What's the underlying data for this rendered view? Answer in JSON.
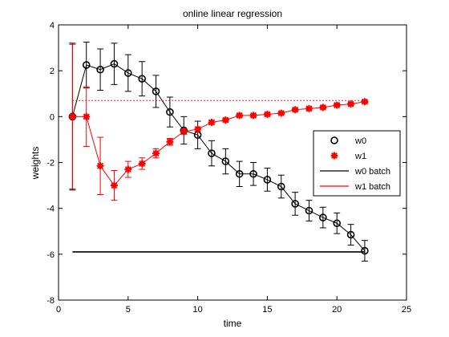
{
  "chart_data": {
    "type": "line",
    "title": "online linear regression",
    "xlabel": "time",
    "ylabel": "weights",
    "xlim": [
      0,
      25
    ],
    "ylim": [
      -8,
      4
    ],
    "xticks": [
      0,
      5,
      10,
      15,
      20,
      25
    ],
    "yticks": [
      -8,
      -6,
      -4,
      -2,
      0,
      2,
      4
    ],
    "xtick_labels": [
      "0",
      "5",
      "10",
      "15",
      "20",
      "25"
    ],
    "ytick_labels": [
      "-8",
      "-6",
      "-4",
      "-2",
      "0",
      "2",
      "4"
    ],
    "grid": false,
    "legend_position": "right",
    "series": [
      {
        "name": "w0",
        "marker": "circle",
        "color": "#000000",
        "x": [
          1,
          2,
          3,
          4,
          5,
          6,
          7,
          8,
          9,
          10,
          11,
          12,
          13,
          14,
          15,
          16,
          17,
          18,
          19,
          20,
          21,
          22
        ],
        "y": [
          0.0,
          2.25,
          2.05,
          2.3,
          1.9,
          1.65,
          1.1,
          0.2,
          -0.6,
          -0.8,
          -1.6,
          -1.95,
          -2.5,
          -2.5,
          -2.75,
          -3.05,
          -3.8,
          -4.1,
          -4.4,
          -4.65,
          -5.15,
          -5.85
        ],
        "err": [
          3.2,
          1.0,
          0.9,
          0.9,
          0.8,
          0.75,
          0.7,
          0.65,
          0.6,
          0.6,
          0.55,
          0.55,
          0.55,
          0.5,
          0.5,
          0.5,
          0.5,
          0.45,
          0.45,
          0.45,
          0.45,
          0.45
        ]
      },
      {
        "name": "w1",
        "marker": "star",
        "color": "#ff0000",
        "x": [
          1,
          2,
          3,
          4,
          5,
          6,
          7,
          8,
          9,
          10,
          11,
          12,
          13,
          14,
          15,
          16,
          17,
          18,
          19,
          20,
          21,
          22
        ],
        "y": [
          0.0,
          0.0,
          -2.15,
          -3.0,
          -2.3,
          -2.05,
          -1.6,
          -1.1,
          -0.65,
          -0.55,
          -0.25,
          -0.15,
          0.05,
          0.05,
          0.1,
          0.15,
          0.3,
          0.35,
          0.4,
          0.5,
          0.55,
          0.65
        ],
        "err": [
          3.15,
          1.3,
          1.25,
          0.65,
          0.35,
          0.25,
          0.2,
          0.15,
          0.12,
          0.1,
          0.08,
          0.07,
          0.06,
          0.05,
          0.05,
          0.05,
          0.05,
          0.05,
          0.05,
          0.05,
          0.05,
          0.05
        ]
      },
      {
        "name": "w0 batch",
        "style": "solid",
        "color": "#000000",
        "x": [
          1,
          22
        ],
        "y": [
          -5.9,
          -5.9
        ]
      },
      {
        "name": "w1 batch",
        "style": "dotted",
        "color": "#ff0000",
        "x": [
          1,
          22
        ],
        "y": [
          0.7,
          0.7
        ]
      }
    ]
  }
}
